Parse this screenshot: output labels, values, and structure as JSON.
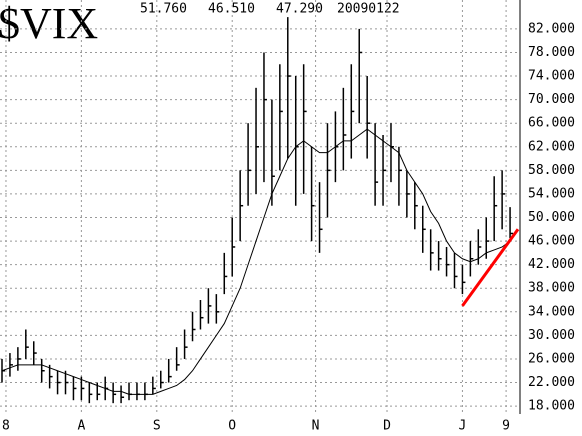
{
  "chart_data": {
    "type": "ohlc",
    "title": "$VIX",
    "header": [
      "51.760",
      "46.510",
      "47.290",
      "20090122"
    ],
    "x": [
      0,
      2,
      4,
      6,
      8,
      10,
      12,
      14,
      16,
      18,
      20,
      22,
      24,
      26,
      28,
      30,
      32,
      34,
      36,
      38,
      40,
      42,
      44,
      46,
      48,
      50,
      52,
      54,
      56,
      58,
      60,
      62,
      64,
      66,
      68,
      70,
      72,
      74,
      76,
      78,
      80,
      82,
      84,
      86,
      88,
      90,
      92,
      94,
      96,
      98,
      100,
      102,
      104,
      106,
      108,
      110,
      112,
      114,
      116,
      118,
      120,
      122,
      124,
      126,
      128
    ],
    "high": [
      26,
      27,
      28,
      31,
      29,
      26,
      25,
      24,
      24,
      23,
      23,
      22,
      22,
      23,
      22,
      21.5,
      22,
      22,
      22,
      23,
      24,
      26,
      28,
      31,
      34,
      36,
      38,
      37,
      44,
      50,
      58,
      66,
      72,
      78,
      70,
      76,
      84,
      74,
      76,
      62,
      56,
      66,
      68,
      72,
      76,
      82,
      74,
      66,
      64,
      66,
      62,
      58,
      56,
      52,
      48,
      46,
      45,
      44,
      42,
      46,
      48,
      50,
      57,
      58,
      51.76
    ],
    "low": [
      22,
      23,
      24,
      26,
      25,
      22,
      21,
      20,
      20,
      19,
      19,
      18.5,
      19,
      19,
      18.5,
      18.5,
      19,
      19,
      19,
      20,
      21,
      22,
      24,
      26,
      29,
      31,
      32,
      32,
      37,
      40,
      46,
      52,
      54,
      56,
      52,
      58,
      60,
      52,
      54,
      46,
      44,
      50,
      56,
      58,
      60,
      66,
      60,
      52,
      52,
      56,
      52,
      50,
      48,
      44,
      41,
      41,
      40,
      38,
      37,
      40,
      42,
      43,
      46,
      48,
      46.51
    ],
    "close": [
      24,
      25,
      26,
      28,
      27,
      24,
      23,
      22,
      22,
      21,
      21,
      20,
      20,
      21,
      20,
      19.5,
      20,
      20,
      20,
      21,
      22,
      23,
      25,
      28,
      31,
      33,
      35,
      34,
      40,
      45,
      52,
      58,
      62,
      70,
      57,
      68,
      74,
      62,
      68,
      52,
      48,
      58,
      62,
      64,
      68,
      78,
      66,
      56,
      58,
      62,
      58,
      54,
      52,
      48,
      44,
      43,
      42,
      40,
      39,
      43,
      45,
      46,
      52,
      54,
      47.29
    ],
    "moving_average": [
      24,
      24.5,
      25,
      25,
      25,
      25,
      24.5,
      24,
      23.5,
      23,
      22.5,
      22,
      21.5,
      21,
      20.5,
      20.5,
      20,
      20,
      20,
      20,
      20.5,
      21,
      21.5,
      22.5,
      24,
      26,
      28,
      30,
      32,
      35,
      38,
      42,
      46,
      50,
      54,
      57,
      60,
      62,
      63,
      62,
      61,
      61,
      62,
      63,
      63,
      64,
      65,
      64,
      63,
      62,
      61,
      58,
      56,
      54,
      51,
      49,
      46,
      44,
      43,
      42.5,
      43,
      44,
      44.5,
      45,
      46
    ],
    "trendline": {
      "x": [
        116,
        130
      ],
      "values": [
        35,
        48
      ],
      "color": "#ff0000"
    },
    "color": "#000000",
    "xlim": [
      0,
      130
    ],
    "xticks": [
      {
        "value": 1,
        "label": "8"
      },
      {
        "value": 20,
        "label": "A"
      },
      {
        "value": 39,
        "label": "S"
      },
      {
        "value": 58,
        "label": "O"
      },
      {
        "value": 79,
        "label": "N"
      },
      {
        "value": 97,
        "label": "D"
      },
      {
        "value": 116,
        "label": "J"
      },
      {
        "value": 127,
        "label": "9"
      }
    ],
    "ylim": [
      17,
      83
    ],
    "yticks": [
      {
        "value": 18,
        "label": "18.000"
      },
      {
        "value": 22,
        "label": "22.000"
      },
      {
        "value": 26,
        "label": "26.000"
      },
      {
        "value": 30,
        "label": "30.000"
      },
      {
        "value": 34,
        "label": "34.000"
      },
      {
        "value": 38,
        "label": "38.000"
      },
      {
        "value": 42,
        "label": "42.000"
      },
      {
        "value": 46,
        "label": "46.000"
      },
      {
        "value": 50,
        "label": "50.000"
      },
      {
        "value": 54,
        "label": "54.000"
      },
      {
        "value": 58,
        "label": "58.000"
      },
      {
        "value": 62,
        "label": "62.000"
      },
      {
        "value": 66,
        "label": "66.000"
      },
      {
        "value": 70,
        "label": "70.000"
      },
      {
        "value": 74,
        "label": "74.000"
      },
      {
        "value": 78,
        "label": "78.000"
      },
      {
        "value": 82,
        "label": "82.000"
      }
    ],
    "grid": true
  }
}
